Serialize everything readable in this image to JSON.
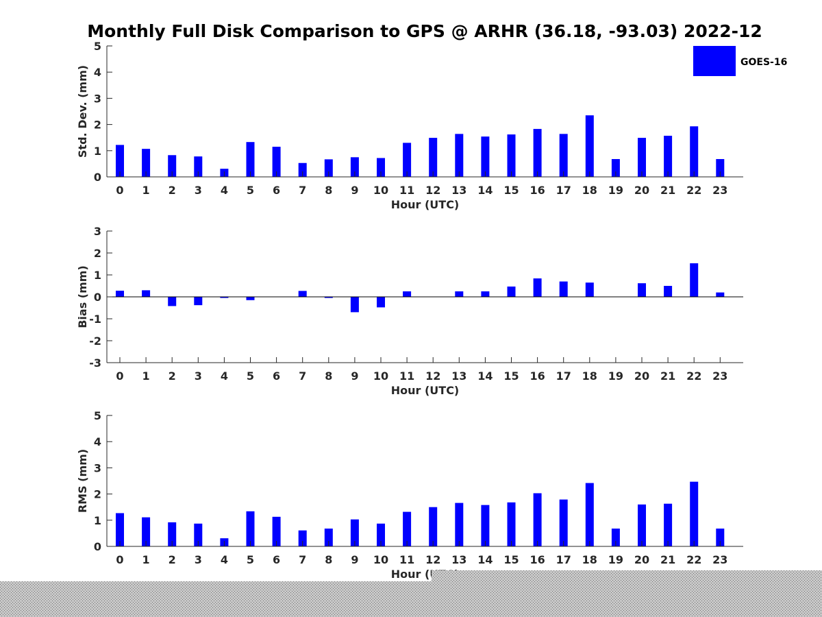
{
  "figure": {
    "title": "Monthly Full Disk Comparison to GPS @ ARHR (36.18, -93.03) 2022-12",
    "legend": {
      "label": "GOES-16",
      "color": "#0000ff",
      "placement": "top-right"
    }
  },
  "chart_data": [
    {
      "type": "bar",
      "xlabel": "Hour (UTC)",
      "ylabel": "Std. Dev. (mm)",
      "ylim": [
        0,
        5
      ],
      "yticks": [
        0,
        1,
        2,
        3,
        4,
        5
      ],
      "categories": [
        "0",
        "1",
        "2",
        "3",
        "4",
        "5",
        "6",
        "7",
        "8",
        "9",
        "10",
        "11",
        "12",
        "13",
        "14",
        "15",
        "16",
        "17",
        "18",
        "19",
        "20",
        "21",
        "22",
        "23"
      ],
      "series": [
        {
          "name": "GOES-16",
          "color": "#0000ff",
          "values": [
            1.22,
            1.07,
            0.83,
            0.78,
            0.31,
            1.33,
            1.15,
            0.53,
            0.67,
            0.75,
            0.72,
            1.3,
            1.49,
            1.64,
            1.54,
            1.62,
            1.83,
            1.64,
            2.35,
            0.68,
            1.49,
            1.57,
            1.93,
            0.68
          ]
        }
      ],
      "grid": false
    },
    {
      "type": "bar",
      "xlabel": "Hour (UTC)",
      "ylabel": "Bias (mm)",
      "ylim": [
        -3,
        3
      ],
      "yticks": [
        -3,
        -2,
        -1,
        0,
        1,
        2,
        3
      ],
      "categories": [
        "0",
        "1",
        "2",
        "3",
        "4",
        "5",
        "6",
        "7",
        "8",
        "9",
        "10",
        "11",
        "12",
        "13",
        "14",
        "15",
        "16",
        "17",
        "18",
        "19",
        "20",
        "21",
        "22",
        "23"
      ],
      "series": [
        {
          "name": "GOES-16",
          "color": "#0000ff",
          "values": [
            0.28,
            0.3,
            -0.42,
            -0.38,
            -0.05,
            -0.15,
            0.0,
            0.27,
            -0.05,
            -0.7,
            -0.48,
            0.25,
            0.0,
            0.25,
            0.25,
            0.47,
            0.84,
            0.7,
            0.65,
            0.0,
            0.62,
            0.5,
            1.53,
            0.2
          ]
        }
      ],
      "zero_line": true,
      "grid": false
    },
    {
      "type": "bar",
      "xlabel": "Hour (UTC)",
      "ylabel": "RMS (mm)",
      "ylim": [
        0,
        5
      ],
      "yticks": [
        0,
        1,
        2,
        3,
        4,
        5
      ],
      "categories": [
        "0",
        "1",
        "2",
        "3",
        "4",
        "5",
        "6",
        "7",
        "8",
        "9",
        "10",
        "11",
        "12",
        "13",
        "14",
        "15",
        "16",
        "17",
        "18",
        "19",
        "20",
        "21",
        "22",
        "23"
      ],
      "series": [
        {
          "name": "GOES-16",
          "color": "#0000ff",
          "values": [
            1.27,
            1.11,
            0.92,
            0.87,
            0.31,
            1.34,
            1.13,
            0.61,
            0.68,
            1.03,
            0.87,
            1.32,
            1.5,
            1.66,
            1.58,
            1.68,
            2.03,
            1.79,
            2.42,
            0.68,
            1.6,
            1.63,
            2.47,
            0.68
          ]
        }
      ],
      "grid": false
    }
  ]
}
